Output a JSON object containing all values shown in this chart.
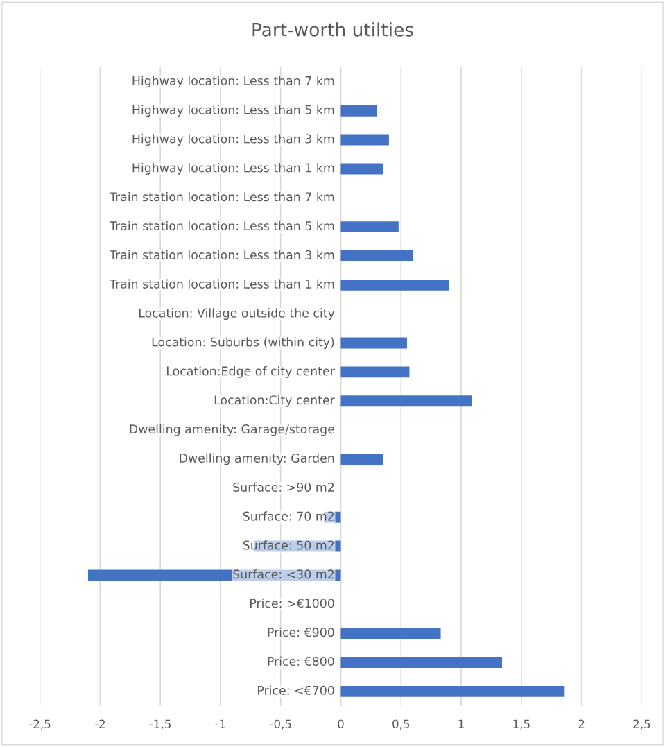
{
  "chart_data": {
    "type": "bar",
    "orientation": "horizontal",
    "title": "Part-worth utilties",
    "categories": [
      "Highway location: Less than 7 km",
      "Highway location: Less than 5 km",
      "Highway location: Less than 3 km",
      "Highway location: Less than 1 km",
      "Train station location: Less than 7 km",
      "Train station location: Less than 5 km",
      "Train station location: Less than 3 km",
      "Train station location: Less than 1 km",
      "Location: Village outside the city",
      "Location: Suburbs (within city)",
      "Location:Edge of city center",
      "Location:City center",
      "Dwelling amenity: Garage/storage",
      "Dwelling amenity: Garden",
      "Surface: >90 m2",
      "Surface: 70 m2",
      "Surface: 50 m2",
      "Surface: <30 m2",
      "Price: >€1000",
      "Price: €900",
      "Price: €800",
      "Price: <€700"
    ],
    "values": [
      0,
      0.3,
      0.4,
      0.35,
      0,
      0.48,
      0.6,
      0.9,
      0,
      0.55,
      0.57,
      1.09,
      0,
      0.35,
      0,
      -0.14,
      -0.72,
      -2.1,
      0,
      0.83,
      1.34,
      1.86
    ],
    "color": "#4472c4",
    "xlim": [
      -2.5,
      2.5
    ],
    "xticks": [
      {
        "value": -2.5,
        "label": "-2,5"
      },
      -2,
      {
        "value": -1.5,
        "label": "-1,5"
      },
      -1,
      {
        "value": -0.5,
        "label": "-0,5"
      },
      0,
      {
        "value": 0.5,
        "label": "0,5"
      },
      1,
      {
        "value": 1.5,
        "label": "1,5"
      },
      2,
      {
        "value": 2.5,
        "label": "2,5"
      }
    ],
    "grid": "x"
  }
}
